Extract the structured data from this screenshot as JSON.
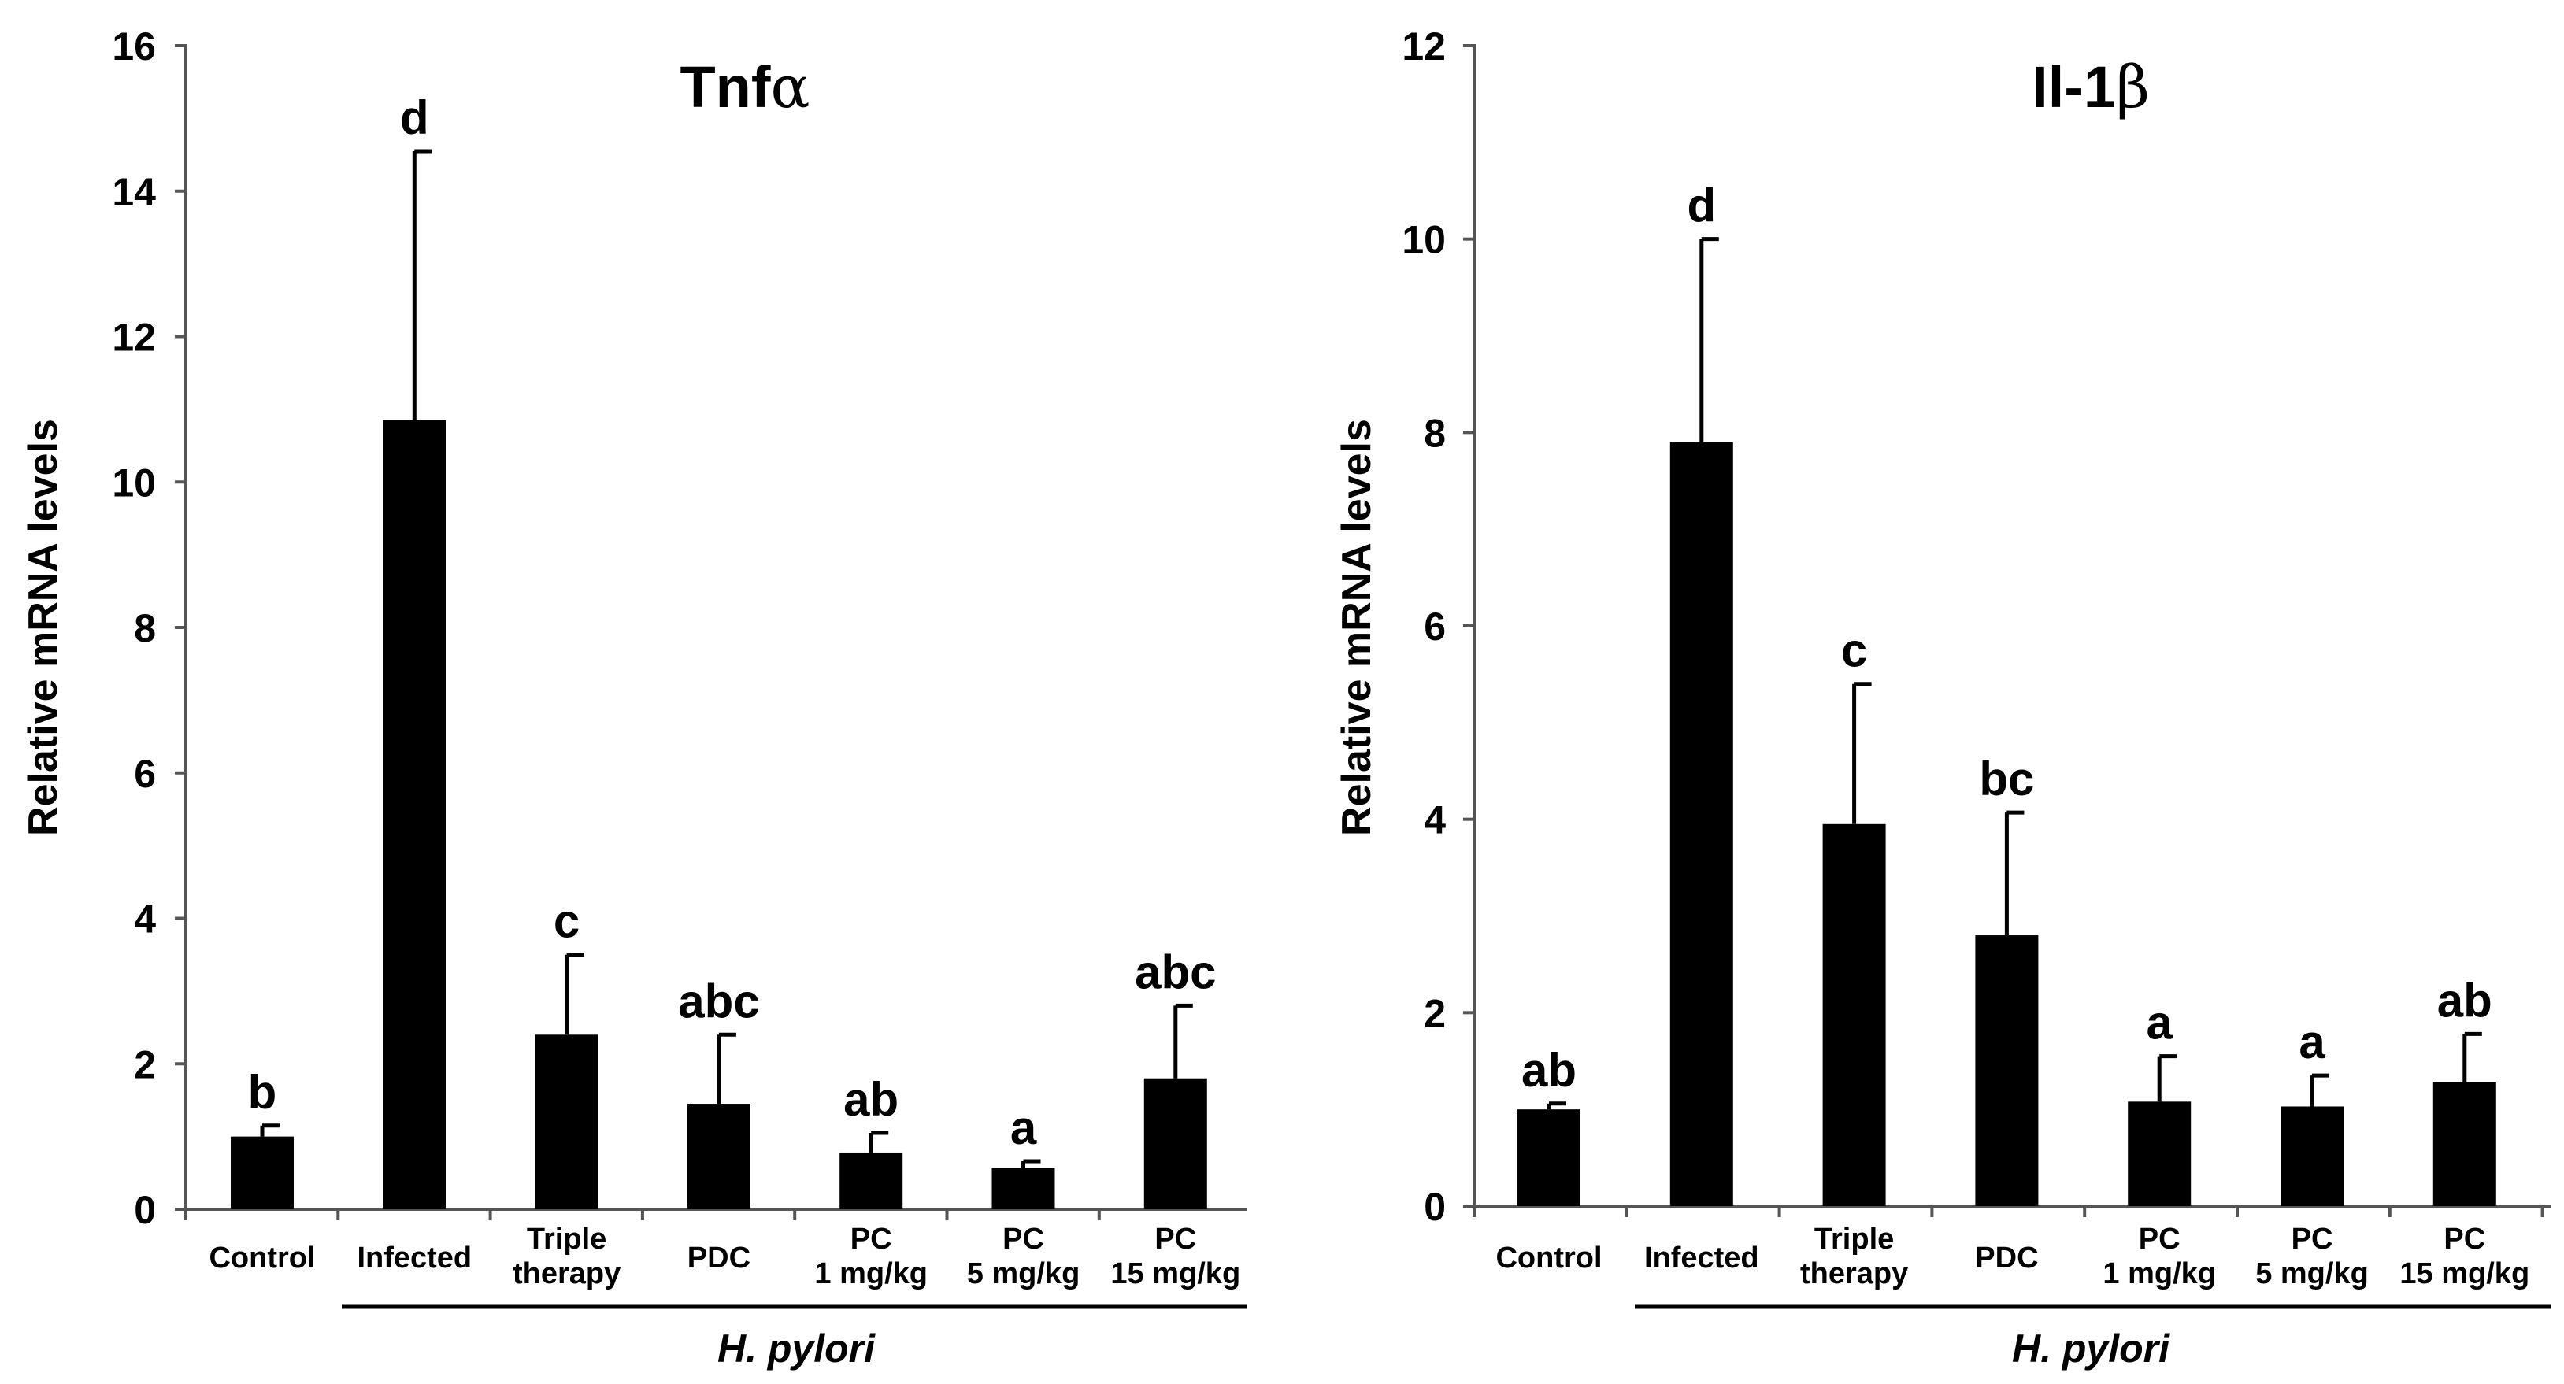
{
  "chart_data": [
    {
      "type": "bar",
      "title": "Tnfα",
      "xlabel": "",
      "ylabel": "Relative mRNA levels",
      "ylim": [
        0,
        16
      ],
      "yticks": [
        "0",
        "2",
        "4",
        "6",
        "8",
        "10",
        "12",
        "14",
        "16"
      ],
      "categories": [
        [
          "Control"
        ],
        [
          "Infected"
        ],
        [
          "Triple",
          "therapy"
        ],
        [
          "PDC"
        ],
        [
          "PC",
          "1 mg/kg"
        ],
        [
          "PC",
          "5 mg/kg"
        ],
        [
          "PC",
          "15 mg/kg"
        ]
      ],
      "values": [
        1.0,
        10.85,
        2.4,
        1.45,
        0.78,
        0.57,
        1.8
      ],
      "errors": [
        0.15,
        3.7,
        1.1,
        0.95,
        0.27,
        0.09,
        1.0
      ],
      "significance": [
        "b",
        "d",
        "c",
        "abc",
        "ab",
        "a",
        "abc"
      ],
      "group_label": "H. pylori",
      "bar_color": "#000000"
    },
    {
      "type": "bar",
      "title": "Il-1β",
      "xlabel": "",
      "ylabel": "Relative mRNA levels",
      "ylim": [
        0,
        12
      ],
      "yticks": [
        "0",
        "2",
        "4",
        "6",
        "8",
        "10",
        "12"
      ],
      "categories": [
        [
          "Control"
        ],
        [
          "Infected"
        ],
        [
          "Triple",
          "therapy"
        ],
        [
          "PDC"
        ],
        [
          "PC",
          "1 mg/kg"
        ],
        [
          "PC",
          "5 mg/kg"
        ],
        [
          "PC",
          "15 mg/kg"
        ]
      ],
      "values": [
        1.0,
        7.9,
        3.95,
        2.8,
        1.08,
        1.03,
        1.28
      ],
      "errors": [
        0.06,
        2.1,
        1.45,
        1.27,
        0.47,
        0.32,
        0.5
      ],
      "significance": [
        "ab",
        "d",
        "c",
        "bc",
        "a",
        "a",
        "ab"
      ],
      "group_label": "H. pylori",
      "bar_color": "#000000"
    }
  ]
}
